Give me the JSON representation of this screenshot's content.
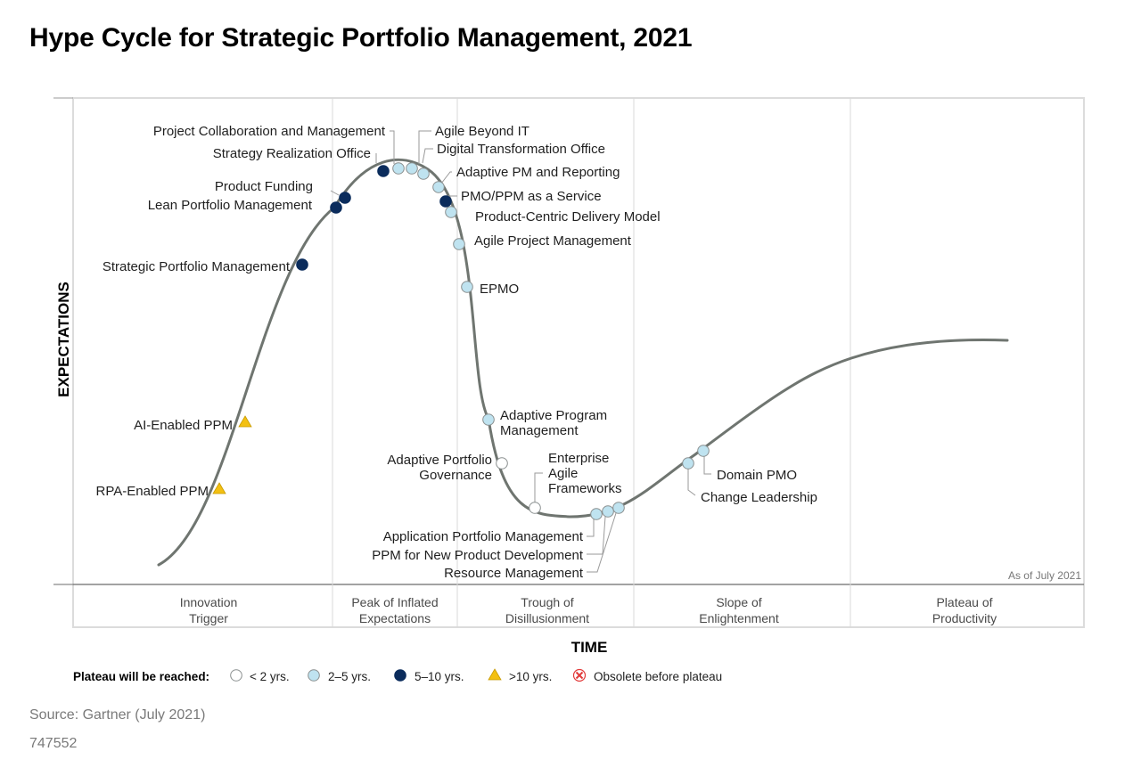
{
  "title": "Hype Cycle for Strategic Portfolio Management, 2021",
  "y_axis_label": "EXPECTATIONS",
  "x_axis_label": "TIME",
  "as_of": "As of July 2021",
  "phases": [
    {
      "lines": [
        "Innovation",
        "Trigger"
      ]
    },
    {
      "lines": [
        "Peak of Inflated",
        "Expectations"
      ]
    },
    {
      "lines": [
        "Trough of",
        "Disillusionment"
      ]
    },
    {
      "lines": [
        "Slope of",
        "Enlightenment"
      ]
    },
    {
      "lines": [
        "Plateau of",
        "Productivity"
      ]
    }
  ],
  "legend": {
    "title": "Plateau will be reached:",
    "items": [
      {
        "key": "lt2",
        "label": "< 2 yrs."
      },
      {
        "key": "2to5",
        "label": "2–5 yrs."
      },
      {
        "key": "5to10",
        "label": "5–10 yrs."
      },
      {
        "key": "gt10",
        "label": ">10 yrs."
      },
      {
        "key": "obsolete",
        "label": "Obsolete before plateau"
      }
    ]
  },
  "colors": {
    "lt2": "#ffffff",
    "2to5": "#bfe3f0",
    "5to10": "#0b2c5c",
    "gt10": "#f3c012",
    "obsolete": "#e23a3a",
    "curve": "#6f7570",
    "grid": "#d9d9d9"
  },
  "technologies": [
    {
      "lines": [
        "RPA-Enabled PPM"
      ],
      "plateau": "gt10"
    },
    {
      "lines": [
        "AI-Enabled PPM"
      ],
      "plateau": "gt10"
    },
    {
      "lines": [
        "Strategic Portfolio Management"
      ],
      "plateau": "5to10"
    },
    {
      "lines": [
        "Lean Portfolio Management"
      ],
      "plateau": "5to10"
    },
    {
      "lines": [
        "Product Funding"
      ],
      "plateau": "5to10"
    },
    {
      "lines": [
        "Strategy Realization Office"
      ],
      "plateau": "5to10"
    },
    {
      "lines": [
        "Project Collaboration and Management"
      ],
      "plateau": "2to5"
    },
    {
      "lines": [
        "Agile Beyond IT"
      ],
      "plateau": "2to5"
    },
    {
      "lines": [
        "Digital Transformation Office"
      ],
      "plateau": "2to5"
    },
    {
      "lines": [
        "Adaptive PM and Reporting"
      ],
      "plateau": "2to5"
    },
    {
      "lines": [
        "PMO/PPM as a Service"
      ],
      "plateau": "5to10"
    },
    {
      "lines": [
        "Product-Centric Delivery Model"
      ],
      "plateau": "2to5"
    },
    {
      "lines": [
        "Agile Project Management"
      ],
      "plateau": "2to5"
    },
    {
      "lines": [
        "EPMO"
      ],
      "plateau": "2to5"
    },
    {
      "lines": [
        "Adaptive Program",
        "Management"
      ],
      "plateau": "2to5"
    },
    {
      "lines": [
        "Adaptive Portfolio",
        "Governance"
      ],
      "plateau": "lt2"
    },
    {
      "lines": [
        "Enterprise",
        "Agile",
        "Frameworks"
      ],
      "plateau": "lt2"
    },
    {
      "lines": [
        "Application Portfolio Management"
      ],
      "plateau": "2to5"
    },
    {
      "lines": [
        "PPM for New Product Development"
      ],
      "plateau": "2to5"
    },
    {
      "lines": [
        "Resource Management"
      ],
      "plateau": "2to5"
    },
    {
      "lines": [
        "Change Leadership"
      ],
      "plateau": "2to5"
    },
    {
      "lines": [
        "Domain PMO"
      ],
      "plateau": "2to5"
    }
  ],
  "source": "Source: Gartner (July 2021)",
  "doc_id": "747552"
}
